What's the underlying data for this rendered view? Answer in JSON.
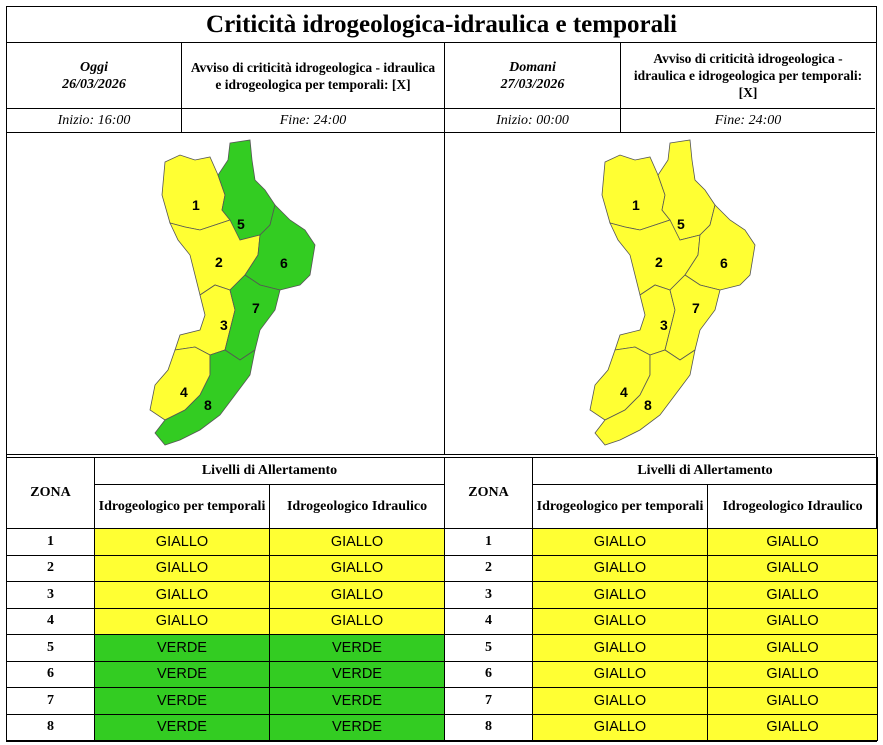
{
  "title": "Criticità idrogeologica-idraulica e temporali",
  "colors": {
    "yellow": "#ffff33",
    "green": "#33cc22"
  },
  "today": {
    "day_label": "Oggi",
    "date": "26/03/2026",
    "notice": "Avviso di criticità idrogeologica - idraulica e idrogeologica per temporali: [X]",
    "start": "Inizio: 16:00",
    "end": "Fine: 24:00",
    "zone_colors": [
      "yellow",
      "yellow",
      "yellow",
      "yellow",
      "green",
      "green",
      "green",
      "green"
    ]
  },
  "tomorrow": {
    "day_label": "Domani",
    "date": "27/03/2026",
    "notice": "Avviso di criticità idrogeologica - idraulica e idrogeologica per temporali: [X]",
    "start": "Inizio: 00:00",
    "end": "Fine: 24:00",
    "zone_colors": [
      "yellow",
      "yellow",
      "yellow",
      "yellow",
      "yellow",
      "yellow",
      "yellow",
      "yellow"
    ]
  },
  "table_headers": {
    "zona": "ZONA",
    "levels": "Livelli di Allertamento",
    "col1": "Idrogeologico per temporali",
    "col2": "Idrogeologico Idraulico"
  },
  "zones": [
    "1",
    "2",
    "3",
    "4",
    "5",
    "6",
    "7",
    "8"
  ],
  "today_rows": [
    [
      "GIALLO",
      "GIALLO"
    ],
    [
      "GIALLO",
      "GIALLO"
    ],
    [
      "GIALLO",
      "GIALLO"
    ],
    [
      "GIALLO",
      "GIALLO"
    ],
    [
      "VERDE",
      "VERDE"
    ],
    [
      "VERDE",
      "VERDE"
    ],
    [
      "VERDE",
      "VERDE"
    ],
    [
      "VERDE",
      "VERDE"
    ]
  ],
  "tomorrow_rows": [
    [
      "GIALLO",
      "GIALLO"
    ],
    [
      "GIALLO",
      "GIALLO"
    ],
    [
      "GIALLO",
      "GIALLO"
    ],
    [
      "GIALLO",
      "GIALLO"
    ],
    [
      "GIALLO",
      "GIALLO"
    ],
    [
      "GIALLO",
      "GIALLO"
    ],
    [
      "GIALLO",
      "GIALLO"
    ],
    [
      "GIALLO",
      "GIALLO"
    ]
  ]
}
